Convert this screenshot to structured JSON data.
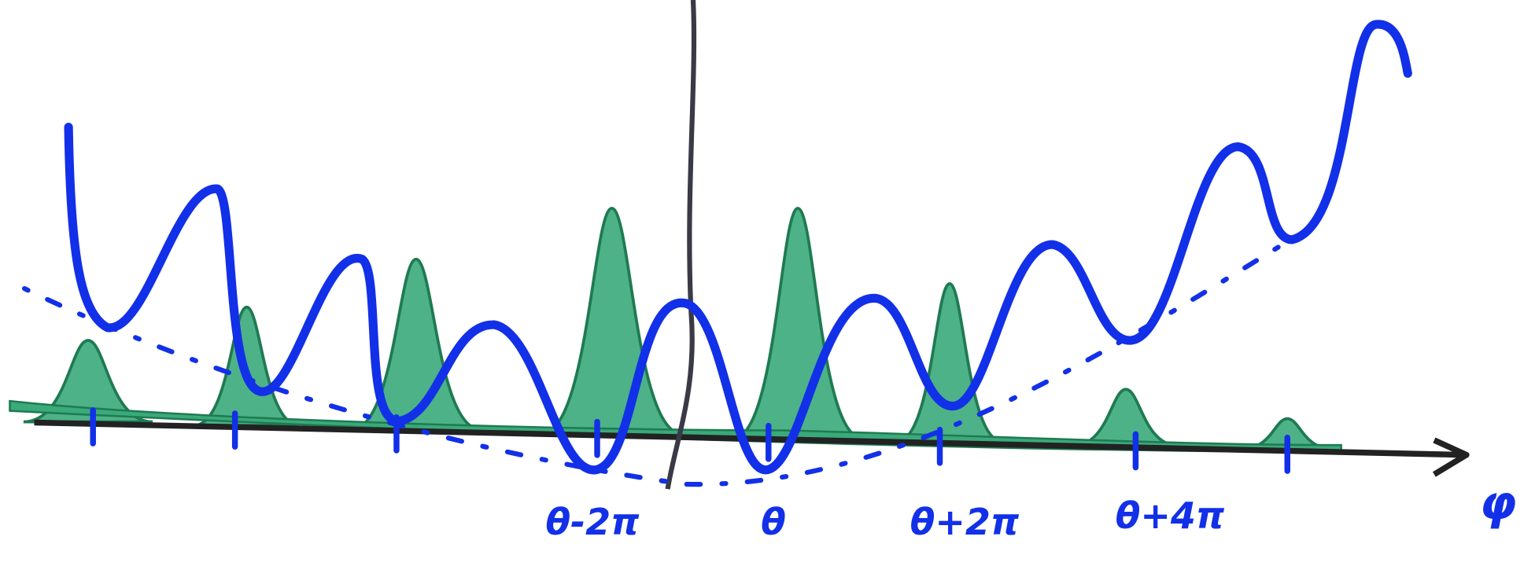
{
  "axis": {
    "tick_labels": [
      "θ-2π",
      "θ",
      "θ+2π",
      "θ+4π"
    ],
    "name": "φ"
  }
}
